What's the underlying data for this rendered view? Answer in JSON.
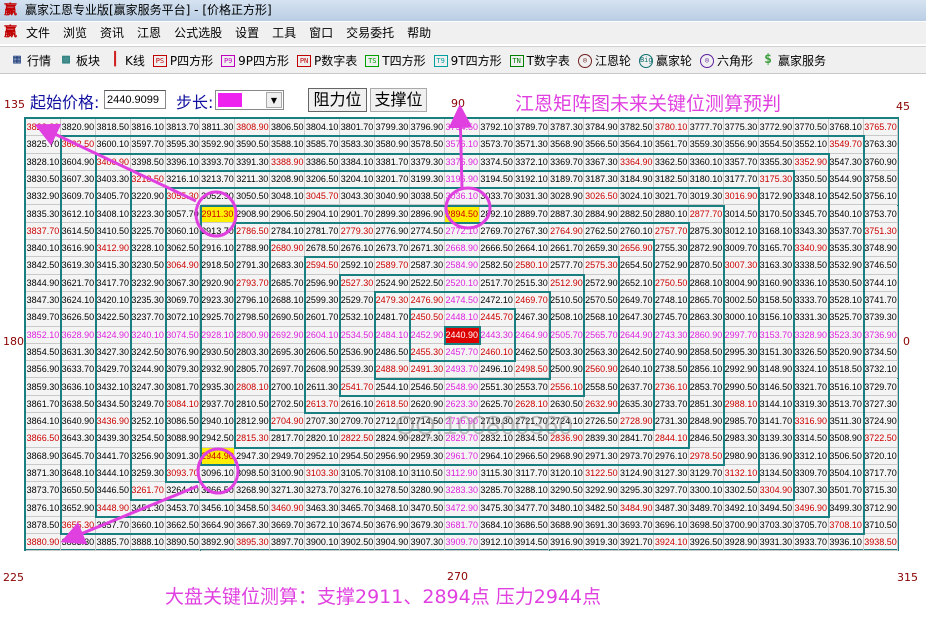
{
  "window": {
    "title": "赢家江恩专业版[赢家服务平台] - [价格正方形]",
    "logo": "赢"
  },
  "menu": [
    "文件",
    "浏览",
    "资讯",
    "江恩",
    "公式选股",
    "设置",
    "工具",
    "窗口",
    "交易委托",
    "帮助"
  ],
  "toolbar": [
    {
      "label": "行情",
      "icon": "table-icon",
      "glyph": "▦",
      "color": "#1a3a7a"
    },
    {
      "label": "板块",
      "icon": "blocks-icon",
      "glyph": "▩",
      "color": "#107070"
    },
    {
      "label": "K线",
      "icon": "candlestick-icon",
      "glyph": "┃",
      "color": "#d02020"
    },
    {
      "label": "P四方形",
      "icon": "ps-icon",
      "glyph": "PS",
      "color": "#c00000"
    },
    {
      "label": "9P四方形",
      "icon": "p9-icon",
      "glyph": "P9",
      "color": "#c000c0"
    },
    {
      "label": "P数字表",
      "icon": "pn-icon",
      "glyph": "PN",
      "color": "#c00000"
    },
    {
      "label": "T四方形",
      "icon": "ts-icon",
      "glyph": "TS",
      "color": "#00a000"
    },
    {
      "label": "9T四方形",
      "icon": "t9-icon",
      "glyph": "T9",
      "color": "#00a0a0"
    },
    {
      "label": "T数字表",
      "icon": "tn-icon",
      "glyph": "TN",
      "color": "#008000"
    },
    {
      "label": "江恩轮",
      "icon": "gann-wheel-icon",
      "glyph": "◎",
      "color": "#702020"
    },
    {
      "label": "赢家轮",
      "icon": "big-wheel-icon",
      "glyph": "Big",
      "color": "#107070"
    },
    {
      "label": "六角形",
      "icon": "hexagon-icon",
      "glyph": "◎",
      "color": "#6020a0"
    },
    {
      "label": "赢家服务",
      "icon": "dollar-icon",
      "glyph": "$",
      "color": "#40a040"
    }
  ],
  "controls": {
    "start_label": "起始价格:",
    "start_value": "2440.9099",
    "step_label": "步长:",
    "step_color": "#ee22ee",
    "resistance_button": "阻力位",
    "support_button": "支撑位"
  },
  "heading": "江恩矩阵图未来关键位测算预判",
  "angles": {
    "a135": "135",
    "a90": "90",
    "a45": "45",
    "a180": "180",
    "a0": "0",
    "a225": "225",
    "a270": "270",
    "a315": "315"
  },
  "bottom_note": "大盘关键位测算：支撑2911、2894点    压力2944点",
  "watermark": "QQ:100800360",
  "colors": {
    "grid_line": "#1a7f80",
    "diagonal_text": "#cc0000",
    "center_cross_text": "#dd22dd",
    "highlight_bg": "#ffee00",
    "center_bg": "#dd0000",
    "annotation": "#e040e0"
  },
  "highlights": {
    "yellow": [
      "2911.30",
      "2944.90",
      "2894.50"
    ],
    "center": "2440.90"
  },
  "extra_red": [
    "3808.90",
    "3388.90",
    "2786.50",
    "3045.70",
    "3026.50",
    "2779.30",
    "2764.90",
    "3780.10",
    "3364.90",
    "3340.90",
    "3751.30",
    "3064.90",
    "2793.70",
    "2808.10",
    "2589.70",
    "2580.10",
    "2476.90",
    "2460.10",
    "2491.30",
    "2560.90",
    "3007.30",
    "2750.50",
    "2736.10",
    "3084.10",
    "3866.50",
    "2815.30",
    "3436.90",
    "3460.90",
    "3895.30",
    "2618.50",
    "2628.10",
    "2822.50",
    "2836.90",
    "3103.30",
    "3122.50",
    "2988.10",
    "3316.90",
    "2844.10",
    "3722.50",
    "2978.50",
    "3132.10",
    "3304.90",
    "3484.90",
    "3496.90",
    "3708.10",
    "3924.10",
    "3412.90",
    "3837.70"
  ],
  "grid": [
    [
      "3823.30",
      "3820.90",
      "3818.50",
      "3816.10",
      "3813.70",
      "3811.30",
      "3808.90",
      "3806.50",
      "3804.10",
      "3801.70",
      "3799.30",
      "3796.90",
      "3794.50",
      "3792.10",
      "3789.70",
      "3787.30",
      "3784.90",
      "3782.50",
      "3780.10",
      "3777.70",
      "3775.30",
      "3772.90",
      "3770.50",
      "3768.10",
      "3765.70"
    ],
    [
      "3825.70",
      "3602.50",
      "3600.10",
      "3597.70",
      "3595.30",
      "3592.90",
      "3590.50",
      "3588.10",
      "3585.70",
      "3583.30",
      "3580.90",
      "3578.50",
      "3576.10",
      "3573.70",
      "3571.30",
      "3568.90",
      "3566.50",
      "3564.10",
      "3561.70",
      "3559.30",
      "3556.90",
      "3554.50",
      "3552.10",
      "3549.70",
      "3763.30"
    ],
    [
      "3828.10",
      "3604.90",
      "3400.90",
      "3398.50",
      "3396.10",
      "3393.70",
      "3391.30",
      "3388.90",
      "3386.50",
      "3384.10",
      "3381.70",
      "3379.30",
      "3376.90",
      "3374.50",
      "3372.10",
      "3369.70",
      "3367.30",
      "3364.90",
      "3362.50",
      "3360.10",
      "3357.70",
      "3355.30",
      "3352.90",
      "3547.30",
      "3760.90"
    ],
    [
      "3830.50",
      "3607.30",
      "3403.30",
      "3218.50",
      "3216.10",
      "3213.70",
      "3211.30",
      "3208.90",
      "3206.50",
      "3204.10",
      "3201.70",
      "3199.30",
      "3196.90",
      "3194.50",
      "3192.10",
      "3189.70",
      "3187.30",
      "3184.90",
      "3182.50",
      "3180.10",
      "3177.70",
      "3175.30",
      "3350.50",
      "3544.90",
      "3758.50"
    ],
    [
      "3832.90",
      "3609.70",
      "3405.70",
      "3220.90",
      "3055.30",
      "3052.90",
      "3050.50",
      "3048.10",
      "3045.70",
      "3043.30",
      "3040.90",
      "3038.50",
      "3036.10",
      "3033.70",
      "3031.30",
      "3028.90",
      "3026.50",
      "3024.10",
      "3021.70",
      "3019.30",
      "3016.90",
      "3172.90",
      "3348.10",
      "3542.50",
      "3756.10"
    ],
    [
      "3835.30",
      "3612.10",
      "3408.10",
      "3223.30",
      "3057.70",
      "2911.30",
      "2908.90",
      "2906.50",
      "2904.10",
      "2901.70",
      "2899.30",
      "2896.90",
      "2894.50",
      "2892.10",
      "2889.70",
      "2887.30",
      "2884.90",
      "2882.50",
      "2880.10",
      "2877.70",
      "3014.50",
      "3170.50",
      "3345.70",
      "3540.10",
      "3753.70"
    ],
    [
      "3837.70",
      "3614.50",
      "3410.50",
      "3225.70",
      "3060.10",
      "2913.70",
      "2786.50",
      "2784.10",
      "2781.70",
      "2779.30",
      "2776.90",
      "2774.50",
      "2772.10",
      "2769.70",
      "2767.30",
      "2764.90",
      "2762.50",
      "2760.10",
      "2757.70",
      "2875.30",
      "3012.10",
      "3168.10",
      "3343.30",
      "3537.70",
      "3751.30"
    ],
    [
      "3840.10",
      "3616.90",
      "3412.90",
      "3228.10",
      "3062.50",
      "2916.10",
      "2788.90",
      "2680.90",
      "2678.50",
      "2676.10",
      "2673.70",
      "2671.30",
      "2668.90",
      "2666.50",
      "2664.10",
      "2661.70",
      "2659.30",
      "2656.90",
      "2755.30",
      "2872.90",
      "3009.70",
      "3165.70",
      "3340.90",
      "3535.30",
      "3748.90"
    ],
    [
      "3842.50",
      "3619.30",
      "3415.30",
      "3230.50",
      "3064.90",
      "2918.50",
      "2791.30",
      "2683.30",
      "2594.50",
      "2592.10",
      "2589.70",
      "2587.30",
      "2584.90",
      "2582.50",
      "2580.10",
      "2577.70",
      "2575.30",
      "2654.50",
      "2752.90",
      "2870.50",
      "3007.30",
      "3163.30",
      "3338.50",
      "3532.90",
      "3746.50"
    ],
    [
      "3844.90",
      "3621.70",
      "3417.70",
      "3232.90",
      "3067.30",
      "2920.90",
      "2793.70",
      "2685.70",
      "2596.90",
      "2527.30",
      "2524.90",
      "2522.50",
      "2520.10",
      "2517.70",
      "2515.30",
      "2512.90",
      "2572.90",
      "2652.10",
      "2750.50",
      "2868.10",
      "3004.90",
      "3160.90",
      "3336.10",
      "3530.50",
      "3744.10"
    ],
    [
      "3847.30",
      "3624.10",
      "3420.10",
      "3235.30",
      "3069.70",
      "2923.30",
      "2796.10",
      "2688.10",
      "2599.30",
      "2529.70",
      "2479.30",
      "2476.90",
      "2474.50",
      "2472.10",
      "2469.70",
      "2510.50",
      "2570.50",
      "2649.70",
      "2748.10",
      "2865.70",
      "3002.50",
      "3158.50",
      "3333.70",
      "3528.10",
      "3741.70"
    ],
    [
      "3849.70",
      "3626.50",
      "3422.50",
      "3237.70",
      "3072.10",
      "2925.70",
      "2798.50",
      "2690.50",
      "2601.70",
      "2532.10",
      "2481.70",
      "2450.50",
      "2448.10",
      "2445.70",
      "2467.30",
      "2508.10",
      "2568.10",
      "2647.30",
      "2745.70",
      "2863.30",
      "3000.10",
      "3156.10",
      "3331.30",
      "3525.70",
      "3739.30"
    ],
    [
      "3852.10",
      "3628.90",
      "3424.90",
      "3240.10",
      "3074.50",
      "2928.10",
      "2800.90",
      "2692.90",
      "2604.10",
      "2534.50",
      "2484.10",
      "2452.90",
      "2440.90",
      "2443.30",
      "2464.90",
      "2505.70",
      "2565.70",
      "2644.90",
      "2743.30",
      "2860.90",
      "2997.70",
      "3153.70",
      "3328.90",
      "3523.30",
      "3736.90"
    ],
    [
      "3854.50",
      "3631.30",
      "3427.30",
      "3242.50",
      "3076.90",
      "2930.50",
      "2803.30",
      "2695.30",
      "2606.50",
      "2536.90",
      "2486.50",
      "2455.30",
      "2457.70",
      "2460.10",
      "2462.50",
      "2503.30",
      "2563.30",
      "2642.50",
      "2740.90",
      "2858.50",
      "2995.30",
      "3151.30",
      "3326.50",
      "3520.90",
      "3734.50"
    ],
    [
      "3856.90",
      "3633.70",
      "3429.70",
      "3244.90",
      "3079.30",
      "2932.90",
      "2805.70",
      "2697.70",
      "2608.90",
      "2539.30",
      "2488.90",
      "2491.30",
      "2493.70",
      "2496.10",
      "2498.50",
      "2500.90",
      "2560.90",
      "2640.10",
      "2738.50",
      "2856.10",
      "2992.90",
      "3148.90",
      "3324.10",
      "3518.50",
      "3732.10"
    ],
    [
      "3859.30",
      "3636.10",
      "3432.10",
      "3247.30",
      "3081.70",
      "2935.30",
      "2808.10",
      "2700.10",
      "2611.30",
      "2541.70",
      "2544.10",
      "2546.50",
      "2548.90",
      "2551.30",
      "2553.70",
      "2556.10",
      "2558.50",
      "2637.70",
      "2736.10",
      "2853.70",
      "2990.50",
      "3146.50",
      "3321.70",
      "3516.10",
      "3729.70"
    ],
    [
      "3861.70",
      "3638.50",
      "3434.50",
      "3249.70",
      "3084.10",
      "2937.70",
      "2810.50",
      "2702.50",
      "2613.70",
      "2616.10",
      "2618.50",
      "2620.90",
      "2623.30",
      "2625.70",
      "2628.10",
      "2630.50",
      "2632.90",
      "2635.30",
      "2733.70",
      "2851.30",
      "2988.10",
      "3144.10",
      "3319.30",
      "3513.70",
      "3727.30"
    ],
    [
      "3864.10",
      "3640.90",
      "3436.90",
      "3252.10",
      "3086.50",
      "2940.10",
      "2812.90",
      "2704.90",
      "2707.30",
      "2709.70",
      "2712.10",
      "2714.50",
      "2716.90",
      "2719.30",
      "2721.70",
      "2724.10",
      "2726.50",
      "2728.90",
      "2731.30",
      "2848.90",
      "2985.70",
      "3141.70",
      "3316.90",
      "3511.30",
      "3724.90"
    ],
    [
      "3866.50",
      "3643.30",
      "3439.30",
      "3254.50",
      "3088.90",
      "2942.50",
      "2815.30",
      "2817.70",
      "2820.10",
      "2822.50",
      "2824.90",
      "2827.30",
      "2829.70",
      "2832.10",
      "2834.50",
      "2836.90",
      "2839.30",
      "2841.70",
      "2844.10",
      "2846.50",
      "2983.30",
      "3139.30",
      "3314.50",
      "3508.90",
      "3722.50"
    ],
    [
      "3868.90",
      "3645.70",
      "3441.70",
      "3256.90",
      "3091.30",
      "2944.90",
      "2947.30",
      "2949.70",
      "2952.10",
      "2954.50",
      "2956.90",
      "2959.30",
      "2961.70",
      "2964.10",
      "2966.50",
      "2968.90",
      "2971.30",
      "2973.70",
      "2976.10",
      "2978.50",
      "2980.90",
      "3136.90",
      "3312.10",
      "3506.50",
      "3720.10"
    ],
    [
      "3871.30",
      "3648.10",
      "3444.10",
      "3259.30",
      "3093.70",
      "3096.10",
      "3098.50",
      "3100.90",
      "3103.30",
      "3105.70",
      "3108.10",
      "3110.50",
      "3112.90",
      "3115.30",
      "3117.70",
      "3120.10",
      "3122.50",
      "3124.90",
      "3127.30",
      "3129.70",
      "3132.10",
      "3134.50",
      "3309.70",
      "3504.10",
      "3717.70"
    ],
    [
      "3873.70",
      "3650.50",
      "3446.50",
      "3261.70",
      "3264.10",
      "3266.50",
      "3268.90",
      "3271.30",
      "3273.70",
      "3276.10",
      "3278.50",
      "3280.90",
      "3283.30",
      "3285.70",
      "3288.10",
      "3290.50",
      "3292.90",
      "3295.30",
      "3297.70",
      "3300.10",
      "3302.50",
      "3304.90",
      "3307.30",
      "3501.70",
      "3715.30"
    ],
    [
      "3876.10",
      "3652.90",
      "3448.90",
      "3451.30",
      "3453.70",
      "3456.10",
      "3458.50",
      "3460.90",
      "3463.30",
      "3465.70",
      "3468.10",
      "3470.50",
      "3472.90",
      "3475.30",
      "3477.70",
      "3480.10",
      "3482.50",
      "3484.90",
      "3487.30",
      "3489.70",
      "3492.10",
      "3494.50",
      "3496.90",
      "3499.30",
      "3712.90"
    ],
    [
      "3878.50",
      "3655.30",
      "3657.70",
      "3660.10",
      "3662.50",
      "3664.90",
      "3667.30",
      "3669.70",
      "3672.10",
      "3674.50",
      "3676.90",
      "3679.30",
      "3681.70",
      "3684.10",
      "3686.50",
      "3688.90",
      "3691.30",
      "3693.70",
      "3696.10",
      "3698.50",
      "3700.90",
      "3703.30",
      "3705.70",
      "3708.10",
      "3710.50"
    ],
    [
      "3880.90",
      "3883.30",
      "3885.70",
      "3888.10",
      "3890.50",
      "3892.90",
      "3895.30",
      "3897.70",
      "3900.10",
      "3902.50",
      "3904.90",
      "3907.30",
      "3909.70",
      "3912.10",
      "3914.50",
      "3916.90",
      "3919.30",
      "3921.70",
      "3924.10",
      "3926.50",
      "3928.90",
      "3931.30",
      "3933.70",
      "3936.10",
      "3938.50"
    ]
  ]
}
